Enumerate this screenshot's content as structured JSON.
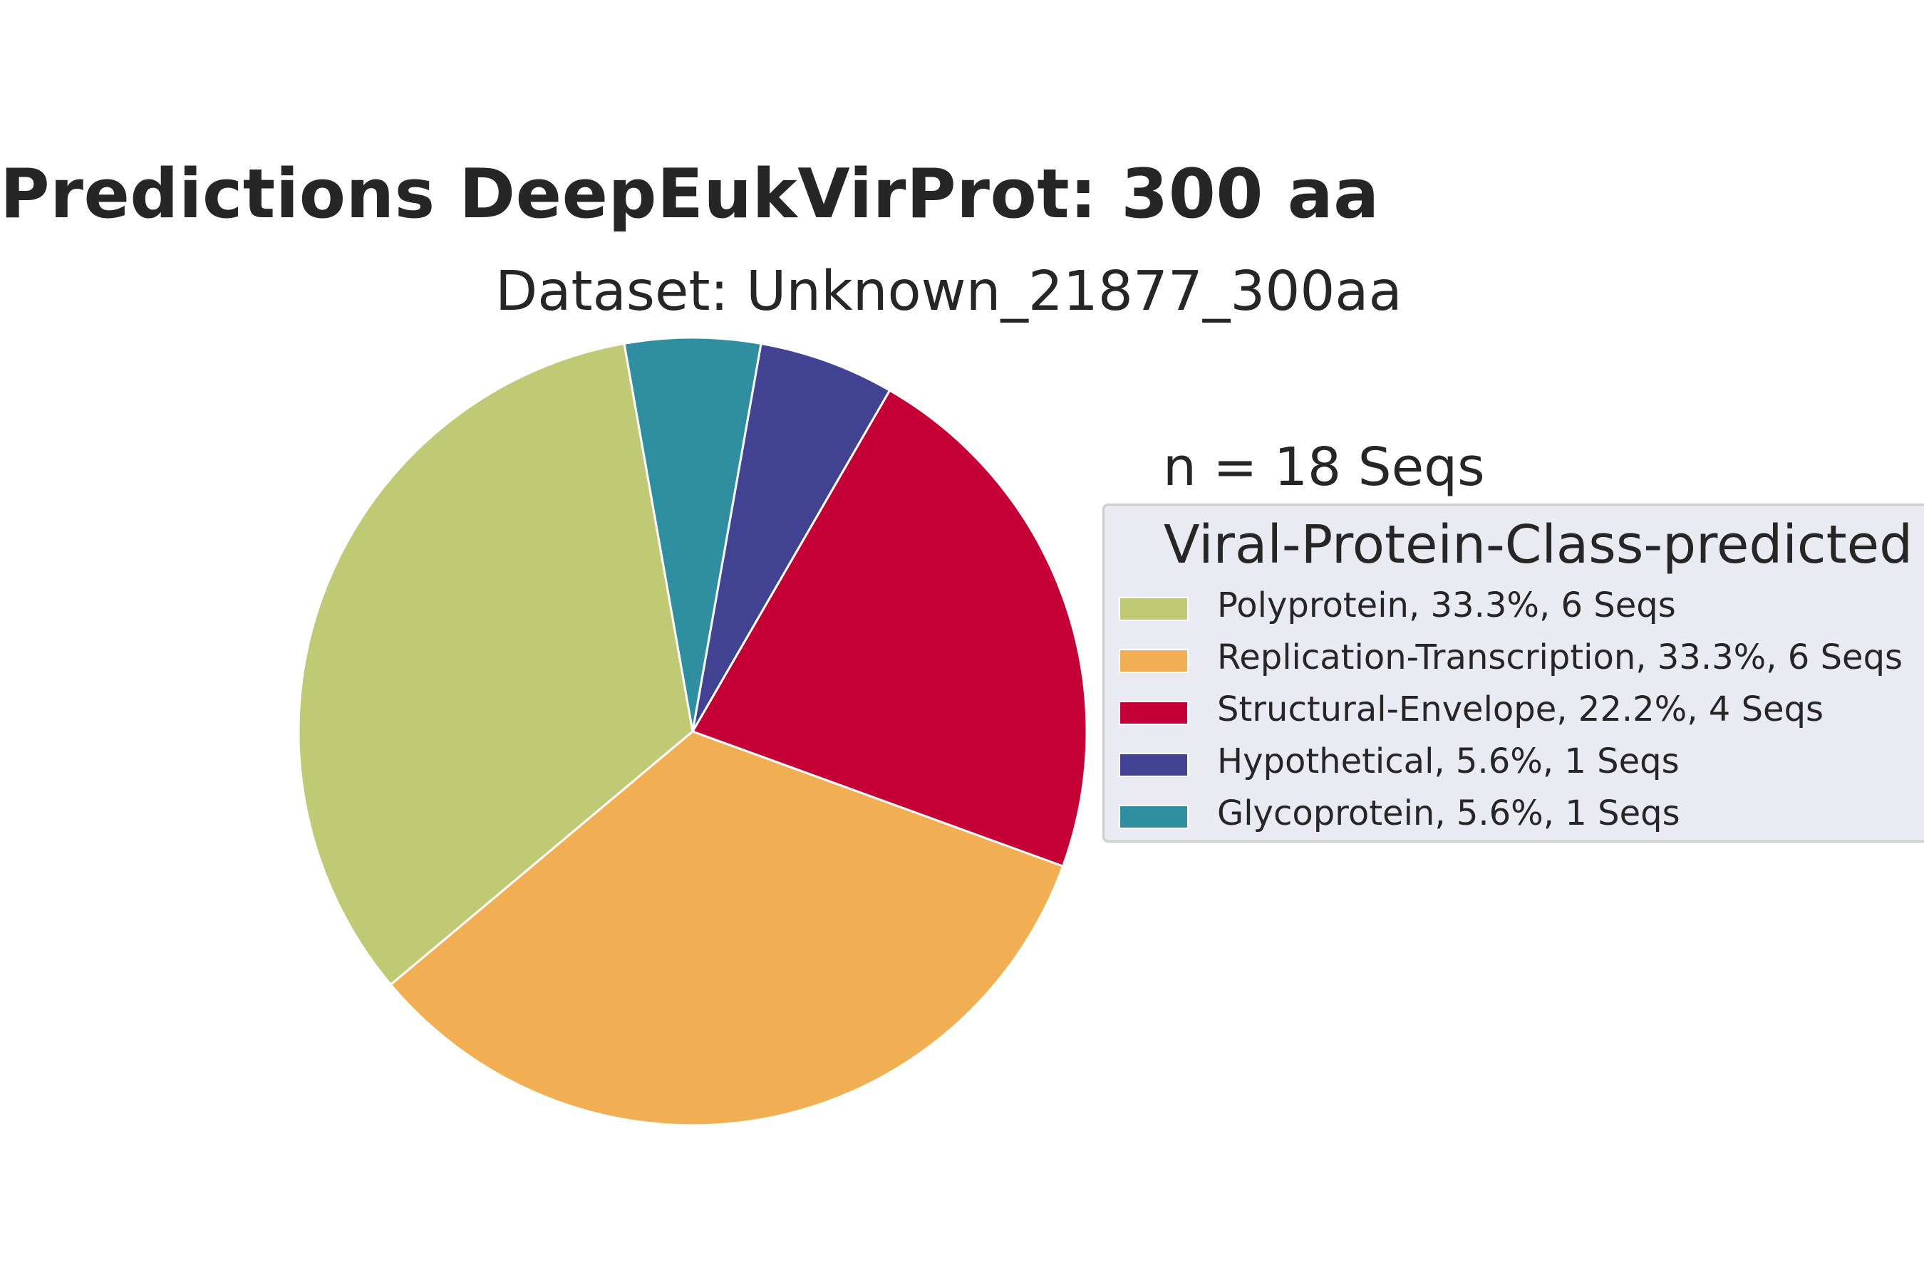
{
  "chart_data": {
    "type": "pie",
    "title": "Predictions DeepEukVirProt: 300 aa",
    "subtitle": "Dataset: Unknown_21877_300aa",
    "n_label": "n = 18 Seqs",
    "legend_title": "Viral-Protein-Class-predicted",
    "legend_position": "right",
    "start_angle": 100,
    "direction": "counterclockwise",
    "slices": [
      {
        "label": "Polyprotein, 33.3%, 6 Seqs",
        "category": "Polyprotein",
        "percent": 33.3,
        "count": 6,
        "color": "#c0ca74"
      },
      {
        "label": "Replication-Transcription, 33.3%, 6 Seqs",
        "category": "Replication-Transcription",
        "percent": 33.3,
        "count": 6,
        "color": "#f2ae52"
      },
      {
        "label": "Structural-Envelope, 22.2%, 4 Seqs",
        "category": "Structural-Envelope",
        "percent": 22.2,
        "count": 4,
        "color": "#c40037"
      },
      {
        "label": "Hypothetical, 5.6%, 1 Seqs",
        "category": "Hypothetical",
        "percent": 5.6,
        "count": 1,
        "color": "#414291"
      },
      {
        "label": "Glycoprotein, 5.6%, 1 Seqs",
        "category": "Glycoprotein",
        "percent": 5.6,
        "count": 1,
        "color": "#2f8fa0"
      }
    ]
  }
}
